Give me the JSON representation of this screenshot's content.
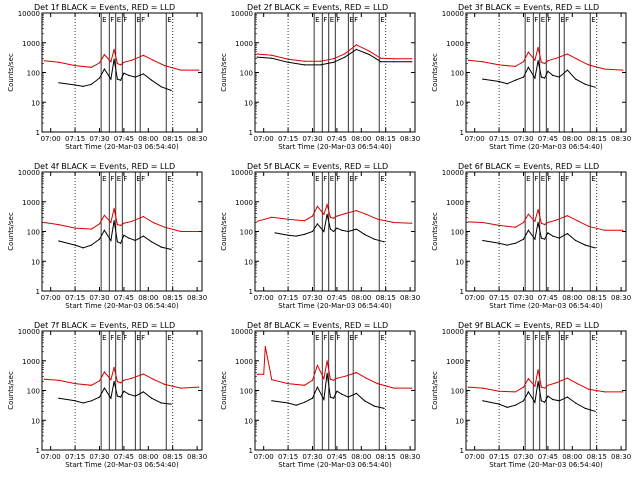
{
  "figure": {
    "ylabel": "Counts/sec",
    "xlabel": "Start Time (20-Mar-03 06:54:40)",
    "y_ticks": [
      "1",
      "10",
      "100",
      "1000",
      "10000"
    ],
    "x_ticks": [
      "07:00",
      "07:15",
      "07:30",
      "07:45",
      "08:00",
      "08:15",
      "08:30"
    ],
    "colors": {
      "events": "#000000",
      "lld": "#dd0000",
      "axes": "#000000"
    }
  },
  "chart_data": [
    {
      "type": "line",
      "title": "Det 1f BLACK = Events, RED = LLD",
      "markers": [
        "E",
        "F",
        "E",
        "F",
        "E",
        "F",
        "E"
      ],
      "xlim": [
        "06:54:40",
        "08:33:00"
      ],
      "ylim": [
        1,
        10000
      ],
      "yscale": "log",
      "series": [
        {
          "name": "Events",
          "x": [
            "07:05",
            "07:15",
            "07:20",
            "07:25",
            "07:30",
            "07:33",
            "07:37",
            "07:39",
            "07:41",
            "07:43",
            "07:45",
            "07:48",
            "07:52",
            "07:57",
            "08:02",
            "08:08",
            "08:14"
          ],
          "values": [
            45,
            38,
            34,
            40,
            65,
            130,
            60,
            280,
            60,
            55,
            95,
            80,
            70,
            90,
            55,
            33,
            25
          ]
        },
        {
          "name": "LLD",
          "x": [
            "06:56",
            "07:05",
            "07:15",
            "07:25",
            "07:30",
            "07:33",
            "07:37",
            "07:39",
            "07:41",
            "07:43",
            "07:45",
            "07:50",
            "07:57",
            "08:03",
            "08:10",
            "08:20",
            "08:31"
          ],
          "values": [
            250,
            220,
            170,
            150,
            210,
            400,
            230,
            600,
            200,
            180,
            220,
            260,
            380,
            260,
            170,
            120,
            120
          ]
        }
      ]
    },
    {
      "type": "line",
      "title": "Det 2f BLACK = Events, RED = LLD",
      "markers": [
        "E",
        "F",
        "E",
        "F",
        "E",
        "F",
        "E"
      ],
      "xlim": [
        "06:54:40",
        "08:33:00"
      ],
      "ylim": [
        1,
        10000
      ],
      "yscale": "log",
      "series": [
        {
          "name": "Events",
          "x": [
            "06:56",
            "07:05",
            "07:15",
            "07:25",
            "07:35",
            "07:43",
            "07:50",
            "07:57",
            "08:05",
            "08:12",
            "08:20",
            "08:31"
          ],
          "values": [
            330,
            300,
            220,
            180,
            180,
            220,
            330,
            600,
            400,
            230,
            230,
            230
          ]
        },
        {
          "name": "LLD",
          "x": [
            "06:56",
            "07:05",
            "07:15",
            "07:25",
            "07:35",
            "07:43",
            "07:50",
            "07:57",
            "08:05",
            "08:12",
            "08:20",
            "08:31"
          ],
          "values": [
            420,
            380,
            280,
            240,
            240,
            290,
            430,
            850,
            520,
            300,
            290,
            290
          ]
        }
      ]
    },
    {
      "type": "line",
      "title": "Det 3f BLACK = Events, RED = LLD",
      "markers": [
        "E",
        "F",
        "E",
        "F",
        "E",
        "F",
        "E"
      ],
      "xlim": [
        "06:54:40",
        "08:33:00"
      ],
      "ylim": [
        1,
        10000
      ],
      "yscale": "log",
      "series": [
        {
          "name": "Events",
          "x": [
            "07:05",
            "07:15",
            "07:20",
            "07:25",
            "07:30",
            "07:33",
            "07:37",
            "07:39",
            "07:41",
            "07:43",
            "07:45",
            "07:48",
            "07:52",
            "07:57",
            "08:02",
            "08:08",
            "08:14"
          ],
          "values": [
            60,
            50,
            42,
            55,
            70,
            150,
            65,
            250,
            70,
            65,
            110,
            80,
            70,
            120,
            60,
            40,
            32
          ]
        },
        {
          "name": "LLD",
          "x": [
            "06:56",
            "07:05",
            "07:15",
            "07:25",
            "07:30",
            "07:33",
            "07:37",
            "07:39",
            "07:41",
            "07:43",
            "07:45",
            "07:50",
            "07:57",
            "08:03",
            "08:10",
            "08:20",
            "08:31"
          ],
          "values": [
            260,
            230,
            180,
            160,
            230,
            480,
            260,
            700,
            220,
            200,
            250,
            300,
            420,
            280,
            180,
            130,
            120
          ]
        }
      ]
    },
    {
      "type": "line",
      "title": "Det 4f BLACK = Events, RED = LLD",
      "markers": [
        "E",
        "F",
        "E",
        "F",
        "E",
        "F",
        "E"
      ],
      "xlim": [
        "06:54:40",
        "08:33:00"
      ],
      "ylim": [
        1,
        10000
      ],
      "yscale": "log",
      "series": [
        {
          "name": "Events",
          "x": [
            "07:05",
            "07:15",
            "07:20",
            "07:25",
            "07:30",
            "07:33",
            "07:37",
            "07:39",
            "07:41",
            "07:43",
            "07:45",
            "07:48",
            "07:52",
            "07:57",
            "08:02",
            "08:08",
            "08:14"
          ],
          "values": [
            48,
            35,
            28,
            35,
            55,
            110,
            50,
            230,
            45,
            40,
            75,
            60,
            50,
            70,
            45,
            30,
            25
          ]
        },
        {
          "name": "LLD",
          "x": [
            "06:56",
            "07:05",
            "07:15",
            "07:25",
            "07:30",
            "07:33",
            "07:37",
            "07:39",
            "07:41",
            "07:43",
            "07:45",
            "07:50",
            "07:57",
            "08:03",
            "08:10",
            "08:20",
            "08:31"
          ],
          "values": [
            200,
            170,
            130,
            120,
            180,
            350,
            200,
            600,
            170,
            160,
            190,
            220,
            320,
            200,
            140,
            100,
            100
          ]
        }
      ]
    },
    {
      "type": "line",
      "title": "Det 5f BLACK = Events, RED = LLD",
      "markers": [
        "E",
        "F",
        "E",
        "F",
        "E",
        "F",
        "E"
      ],
      "xlim": [
        "06:54:40",
        "08:33:00"
      ],
      "ylim": [
        1,
        10000
      ],
      "yscale": "log",
      "series": [
        {
          "name": "Events",
          "x": [
            "07:07",
            "07:15",
            "07:20",
            "07:25",
            "07:30",
            "07:33",
            "07:37",
            "07:39",
            "07:41",
            "07:43",
            "07:45",
            "07:48",
            "07:52",
            "07:57",
            "08:02",
            "08:08",
            "08:14"
          ],
          "values": [
            90,
            75,
            70,
            80,
            100,
            180,
            100,
            380,
            120,
            100,
            130,
            110,
            100,
            120,
            80,
            55,
            45
          ]
        },
        {
          "name": "LLD",
          "x": [
            "06:56",
            "07:05",
            "07:15",
            "07:25",
            "07:30",
            "07:33",
            "07:37",
            "07:39",
            "07:41",
            "07:43",
            "07:45",
            "07:50",
            "07:57",
            "08:03",
            "08:10",
            "08:20",
            "08:31"
          ],
          "values": [
            220,
            300,
            260,
            230,
            330,
            700,
            380,
            800,
            300,
            280,
            330,
            400,
            500,
            380,
            260,
            200,
            190
          ]
        }
      ]
    },
    {
      "type": "line",
      "title": "Det 6f BLACK = Events, RED = LLD",
      "markers": [
        "E",
        "F",
        "E",
        "F",
        "E",
        "F",
        "E"
      ],
      "xlim": [
        "06:54:40",
        "08:33:00"
      ],
      "ylim": [
        1,
        10000
      ],
      "yscale": "log",
      "series": [
        {
          "name": "Events",
          "x": [
            "07:05",
            "07:15",
            "07:20",
            "07:25",
            "07:30",
            "07:33",
            "07:37",
            "07:39",
            "07:41",
            "07:43",
            "07:45",
            "07:48",
            "07:52",
            "07:57",
            "08:02",
            "08:08",
            "08:14"
          ],
          "values": [
            50,
            40,
            35,
            40,
            55,
            110,
            55,
            200,
            60,
            55,
            90,
            70,
            60,
            85,
            50,
            35,
            28
          ]
        },
        {
          "name": "LLD",
          "x": [
            "06:56",
            "07:05",
            "07:15",
            "07:25",
            "07:30",
            "07:33",
            "07:37",
            "07:39",
            "07:41",
            "07:43",
            "07:45",
            "07:50",
            "07:57",
            "08:03",
            "08:10",
            "08:20",
            "08:31"
          ],
          "values": [
            210,
            200,
            160,
            140,
            200,
            380,
            220,
            550,
            190,
            170,
            200,
            240,
            340,
            230,
            150,
            110,
            110
          ]
        }
      ]
    },
    {
      "type": "line",
      "title": "Det 7f BLACK = Events, RED = LLD",
      "markers": [
        "E",
        "F",
        "E",
        "F",
        "E",
        "F",
        "E"
      ],
      "xlim": [
        "06:54:40",
        "08:33:00"
      ],
      "ylim": [
        1,
        10000
      ],
      "yscale": "log",
      "series": [
        {
          "name": "Events",
          "x": [
            "07:05",
            "07:15",
            "07:20",
            "07:25",
            "07:30",
            "07:33",
            "07:37",
            "07:39",
            "07:41",
            "07:43",
            "07:45",
            "07:48",
            "07:52",
            "07:57",
            "08:02",
            "08:08",
            "08:14"
          ],
          "values": [
            55,
            45,
            38,
            45,
            60,
            120,
            55,
            200,
            65,
            60,
            95,
            75,
            65,
            90,
            55,
            38,
            35
          ]
        },
        {
          "name": "LLD",
          "x": [
            "06:56",
            "07:05",
            "07:15",
            "07:25",
            "07:30",
            "07:33",
            "07:37",
            "07:39",
            "07:41",
            "07:43",
            "07:45",
            "07:50",
            "07:57",
            "08:03",
            "08:10",
            "08:20",
            "08:31"
          ],
          "values": [
            240,
            220,
            170,
            150,
            210,
            420,
            230,
            600,
            200,
            180,
            220,
            260,
            360,
            240,
            160,
            120,
            130
          ]
        }
      ]
    },
    {
      "type": "line",
      "title": "Det 8f BLACK = Events, RED = LLD",
      "markers": [
        "E",
        "F",
        "E",
        "F",
        "E",
        "F",
        "E"
      ],
      "xlim": [
        "06:54:40",
        "08:33:00"
      ],
      "ylim": [
        1,
        10000
      ],
      "yscale": "log",
      "series": [
        {
          "name": "Events",
          "x": [
            "07:05",
            "07:15",
            "07:20",
            "07:25",
            "07:30",
            "07:33",
            "07:37",
            "07:39",
            "07:41",
            "07:43",
            "07:45",
            "07:48",
            "07:52",
            "07:57",
            "08:02",
            "08:08",
            "08:14"
          ],
          "values": [
            45,
            38,
            32,
            40,
            55,
            130,
            50,
            380,
            60,
            55,
            95,
            75,
            60,
            80,
            45,
            30,
            25
          ]
        },
        {
          "name": "LLD",
          "x": [
            "06:56",
            "07:00",
            "07:01",
            "07:05",
            "07:15",
            "07:25",
            "07:30",
            "07:33",
            "07:37",
            "07:39",
            "07:41",
            "07:43",
            "07:45",
            "07:50",
            "07:57",
            "08:03",
            "08:10",
            "08:20",
            "08:31"
          ],
          "values": [
            350,
            350,
            3000,
            230,
            170,
            150,
            220,
            700,
            250,
            1000,
            240,
            220,
            260,
            300,
            400,
            260,
            170,
            120,
            120
          ]
        }
      ]
    },
    {
      "type": "line",
      "title": "Det 9f BLACK = Events, RED = LLD",
      "markers": [
        "E",
        "F",
        "E",
        "F",
        "E",
        "F",
        "E"
      ],
      "xlim": [
        "06:54:40",
        "08:33:00"
      ],
      "ylim": [
        1,
        10000
      ],
      "yscale": "log",
      "series": [
        {
          "name": "Events",
          "x": [
            "07:05",
            "07:15",
            "07:20",
            "07:25",
            "07:30",
            "07:33",
            "07:37",
            "07:39",
            "07:41",
            "07:43",
            "07:45",
            "07:48",
            "07:52",
            "07:57",
            "08:02",
            "08:08",
            "08:14"
          ],
          "values": [
            45,
            35,
            27,
            32,
            45,
            90,
            40,
            200,
            45,
            40,
            65,
            50,
            45,
            60,
            38,
            25,
            20
          ]
        },
        {
          "name": "LLD",
          "x": [
            "06:56",
            "07:05",
            "07:15",
            "07:25",
            "07:30",
            "07:33",
            "07:37",
            "07:39",
            "07:41",
            "07:43",
            "07:45",
            "07:50",
            "07:57",
            "08:03",
            "08:10",
            "08:20",
            "08:31"
          ],
          "values": [
            130,
            120,
            95,
            90,
            130,
            250,
            140,
            500,
            130,
            120,
            150,
            180,
            260,
            170,
            110,
            90,
            90
          ]
        }
      ]
    }
  ]
}
